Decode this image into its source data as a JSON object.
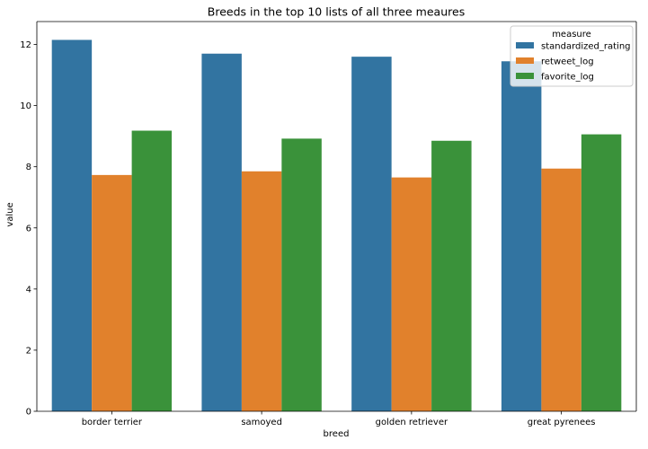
{
  "chart_data": {
    "type": "bar",
    "title": "Breeds in the top 10 lists of all three meaures",
    "xlabel": "breed",
    "ylabel": "value",
    "categories": [
      "border terrier",
      "samoyed",
      "golden retriever",
      "great pyrenees"
    ],
    "series": [
      {
        "name": "standardized_rating",
        "color": "#3274a1",
        "values": [
          12.15,
          11.7,
          11.6,
          11.45
        ]
      },
      {
        "name": "retweet_log",
        "color": "#e1812c",
        "values": [
          7.73,
          7.85,
          7.65,
          7.94
        ]
      },
      {
        "name": "favorite_log",
        "color": "#3a923a",
        "values": [
          9.18,
          8.92,
          8.85,
          9.06
        ]
      }
    ],
    "ylim": [
      0,
      12.75
    ],
    "yticks": [
      0,
      2,
      4,
      6,
      8,
      10,
      12
    ],
    "legend": {
      "title": "measure",
      "position": "top-right"
    },
    "grid": false
  }
}
